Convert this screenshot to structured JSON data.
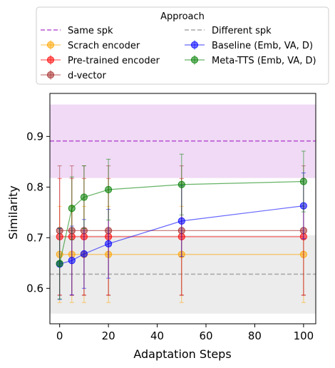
{
  "chart_data": {
    "type": "line",
    "xlabel": "Adaptation Steps",
    "ylabel": "Similarity",
    "xlim": [
      -4,
      105
    ],
    "ylim": [
      0.53,
      0.985
    ],
    "xticks": [
      0,
      20,
      40,
      60,
      80,
      100
    ],
    "yticks": [
      0.6,
      0.7,
      0.8,
      0.9
    ],
    "grid": false,
    "legend": {
      "title": "Approach",
      "placement": "top",
      "columns": 2
    },
    "x": [
      0,
      5,
      10,
      20,
      50,
      100
    ],
    "bands": [
      {
        "name": "Same spk",
        "center": 0.891,
        "low": 0.818,
        "high": 0.963,
        "color": "#ba55d3"
      },
      {
        "name": "Different spk",
        "center": 0.628,
        "low": 0.55,
        "high": 0.705,
        "color": "#a9a9a9"
      }
    ],
    "series": [
      {
        "name": "Scrach encoder",
        "color": "#ffa500",
        "values": [
          0.667,
          0.667,
          0.667,
          0.667,
          0.667,
          0.667
        ],
        "err": [
          0.095,
          0.095,
          0.095,
          0.095,
          0.095,
          0.095
        ]
      },
      {
        "name": "Pre-trained encoder",
        "color": "#ff0000",
        "values": [
          0.702,
          0.702,
          0.702,
          0.702,
          0.702,
          0.702
        ],
        "err": [
          0.115,
          0.115,
          0.115,
          0.115,
          0.115,
          0.115
        ]
      },
      {
        "name": "d-vector",
        "color": "#a52a2a",
        "values": [
          0.714,
          0.714,
          0.714,
          0.714,
          0.714,
          0.714
        ],
        "err": [
          0.128,
          0.128,
          0.128,
          0.128,
          0.128,
          0.128
        ]
      },
      {
        "name": "Baseline (Emb, VA, D)",
        "color": "#0000ff",
        "values": [
          0.648,
          0.655,
          0.668,
          0.688,
          0.733,
          0.763
        ],
        "err": [
          0.07,
          0.068,
          0.068,
          0.068,
          0.07,
          0.065
        ]
      },
      {
        "name": "Meta-TTS (Emb, VA, D)",
        "color": "#008000",
        "values": [
          0.649,
          0.758,
          0.78,
          0.795,
          0.805,
          0.811
        ],
        "err": [
          0.07,
          0.062,
          0.062,
          0.06,
          0.06,
          0.06
        ]
      }
    ]
  }
}
